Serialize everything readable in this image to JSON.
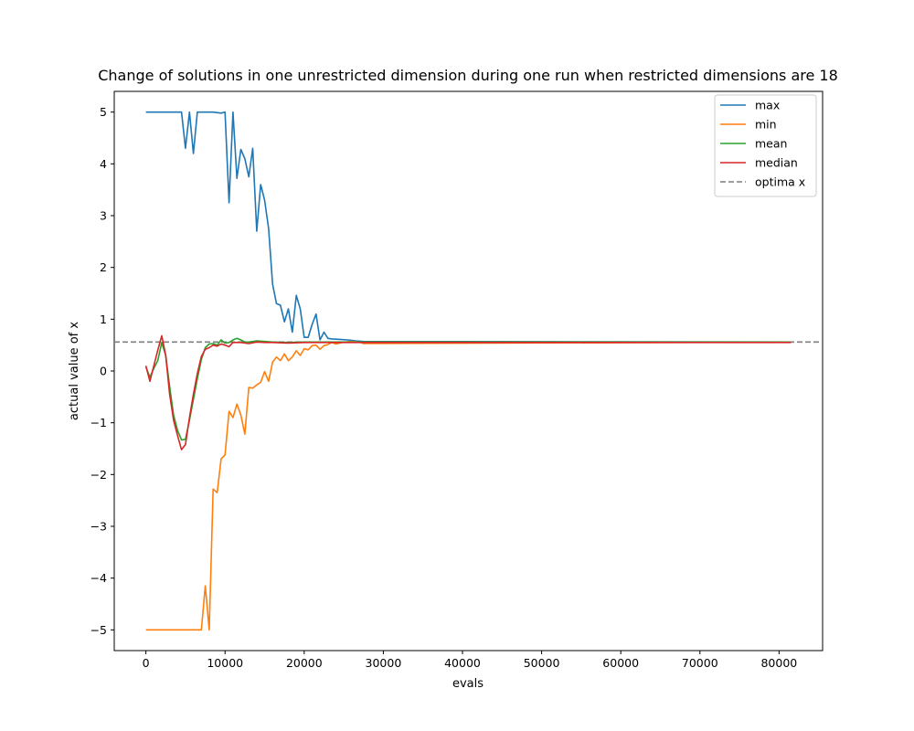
{
  "chart_data": {
    "type": "line",
    "title": "Change of solutions in one unrestricted dimension during one run when restricted dimensions are 18",
    "xlabel": "evals",
    "ylabel": "actual value of x",
    "xlim": [
      -4000,
      85500
    ],
    "ylim": [
      -5.4,
      5.4
    ],
    "xticks": [
      0,
      10000,
      20000,
      30000,
      40000,
      50000,
      60000,
      70000,
      80000
    ],
    "yticks": [
      -5,
      -4,
      -3,
      -2,
      -1,
      0,
      1,
      2,
      3,
      4,
      5
    ],
    "grid": false,
    "legend_position": "top-right",
    "reference_lines": [
      {
        "name": "optima x",
        "y": 0.56,
        "color": "#7f7f7f",
        "dash": "dashed"
      }
    ],
    "series": [
      {
        "name": "max",
        "color": "#1f77b4",
        "x": [
          0,
          1000,
          2000,
          3000,
          4500,
          5000,
          5500,
          6000,
          6500,
          7500,
          8500,
          9500,
          10000,
          10500,
          11000,
          11500,
          12000,
          12500,
          13000,
          13500,
          14000,
          14500,
          15000,
          15500,
          16000,
          16500,
          17000,
          17500,
          18000,
          18500,
          19000,
          19500,
          20000,
          20500,
          21000,
          21500,
          22000,
          22500,
          23000,
          23500,
          24500,
          25500,
          26500,
          27500,
          81500
        ],
        "y": [
          5.0,
          5.0,
          5.0,
          5.0,
          5.0,
          4.3,
          5.0,
          4.2,
          5.0,
          5.0,
          5.0,
          4.98,
          5.0,
          3.25,
          5.0,
          3.72,
          4.28,
          4.1,
          3.75,
          4.3,
          2.7,
          3.6,
          3.3,
          2.75,
          1.68,
          1.3,
          1.27,
          0.95,
          1.2,
          0.75,
          1.46,
          1.2,
          0.65,
          0.65,
          0.9,
          1.1,
          0.6,
          0.75,
          0.63,
          0.62,
          0.61,
          0.6,
          0.58,
          0.57,
          0.56
        ]
      },
      {
        "name": "min",
        "color": "#ff7f0e",
        "x": [
          0,
          7000,
          7500,
          8000,
          8500,
          9000,
          9500,
          10000,
          10500,
          11000,
          11500,
          12000,
          12500,
          13000,
          13500,
          14000,
          14500,
          15000,
          15500,
          16000,
          16500,
          17000,
          17500,
          18000,
          18500,
          19000,
          19500,
          20000,
          20500,
          21000,
          21500,
          22000,
          22500,
          23000,
          23500,
          24000,
          25000,
          26000,
          27000,
          27500,
          81500
        ],
        "y": [
          -5.0,
          -5.0,
          -4.15,
          -5.0,
          -2.28,
          -2.35,
          -1.7,
          -1.62,
          -0.78,
          -0.9,
          -0.64,
          -0.85,
          -1.22,
          -0.32,
          -0.33,
          -0.27,
          -0.22,
          -0.01,
          -0.2,
          0.17,
          0.27,
          0.2,
          0.33,
          0.2,
          0.27,
          0.39,
          0.3,
          0.43,
          0.41,
          0.49,
          0.5,
          0.42,
          0.49,
          0.51,
          0.55,
          0.52,
          0.56,
          0.57,
          0.56,
          0.53,
          0.56
        ]
      },
      {
        "name": "mean",
        "color": "#2ca02c",
        "x": [
          0,
          500,
          1000,
          1500,
          2000,
          2500,
          3000,
          3500,
          4000,
          4500,
          5000,
          5500,
          6000,
          6500,
          7000,
          7500,
          8000,
          8500,
          9000,
          9500,
          10000,
          10500,
          11000,
          11500,
          12000,
          12500,
          13000,
          14000,
          15000,
          16000,
          18000,
          20000,
          25000,
          81500
        ],
        "y": [
          0.08,
          -0.12,
          0.05,
          0.2,
          0.55,
          0.3,
          -0.3,
          -0.85,
          -1.15,
          -1.33,
          -1.32,
          -0.95,
          -0.55,
          -0.15,
          0.22,
          0.45,
          0.52,
          0.53,
          0.5,
          0.6,
          0.54,
          0.55,
          0.6,
          0.63,
          0.6,
          0.56,
          0.56,
          0.58,
          0.57,
          0.56,
          0.55,
          0.56,
          0.56,
          0.56
        ]
      },
      {
        "name": "median",
        "color": "#d62728",
        "x": [
          0,
          500,
          1000,
          1500,
          2000,
          2500,
          3000,
          3500,
          4000,
          4500,
          5000,
          5500,
          6000,
          6500,
          7000,
          7500,
          8000,
          8500,
          9000,
          9500,
          10000,
          10500,
          11000,
          11500,
          12000,
          13000,
          14000,
          15000,
          16000,
          18000,
          20000,
          25000,
          81500
        ],
        "y": [
          0.1,
          -0.2,
          0.1,
          0.4,
          0.68,
          0.3,
          -0.45,
          -0.95,
          -1.25,
          -1.52,
          -1.42,
          -0.9,
          -0.45,
          -0.05,
          0.28,
          0.42,
          0.45,
          0.5,
          0.48,
          0.52,
          0.5,
          0.47,
          0.55,
          0.55,
          0.55,
          0.53,
          0.56,
          0.55,
          0.55,
          0.54,
          0.55,
          0.55,
          0.55
        ]
      }
    ],
    "legend": [
      "max",
      "min",
      "mean",
      "median",
      "optima x"
    ]
  }
}
